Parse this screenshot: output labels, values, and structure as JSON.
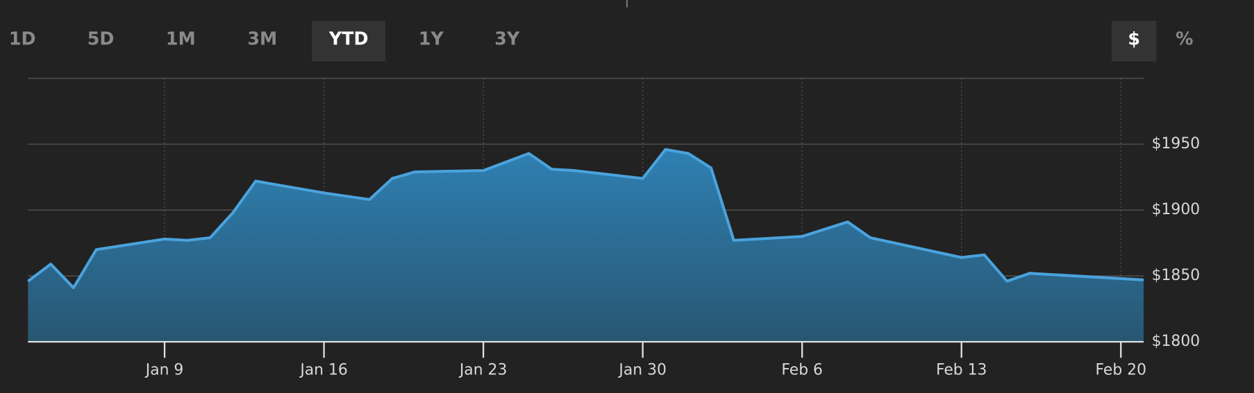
{
  "controls": {
    "ranges": [
      "1D",
      "5D",
      "1M",
      "3M",
      "YTD",
      "1Y",
      "3Y"
    ],
    "selected_range": 4,
    "units": [
      "$",
      "%"
    ],
    "selected_unit": 0
  },
  "chart_data": {
    "type": "area",
    "x": [
      "Jan 3",
      "Jan 4",
      "Jan 5",
      "Jan 6",
      "Jan 9",
      "Jan 10",
      "Jan 11",
      "Jan 12",
      "Jan 13",
      "Jan 16",
      "Jan 18",
      "Jan 19",
      "Jan 20",
      "Jan 23",
      "Jan 25",
      "Jan 26",
      "Jan 27",
      "Jan 30",
      "Jan 31",
      "Feb 1",
      "Feb 2",
      "Feb 3",
      "Feb 6",
      "Feb 8",
      "Feb 9",
      "Feb 13",
      "Feb 14",
      "Feb 15",
      "Feb 16",
      "Feb 17",
      "Feb 21"
    ],
    "series": [
      {
        "color": "#4aa3dd",
        "values": [
          1846,
          1859,
          1841,
          1870,
          1878,
          1877,
          1879,
          1898,
          1922,
          1913,
          1908,
          1924,
          1929,
          1930,
          1943,
          1931,
          1930,
          1924,
          1946,
          1943,
          1932,
          1877,
          1880,
          1891,
          1879,
          1864,
          1866,
          1846,
          1852,
          1851,
          1847
        ]
      }
    ],
    "xlim": [
      "Jan 3",
      "Feb 21"
    ],
    "xticks": [
      "Jan 9",
      "Jan 16",
      "Jan 23",
      "Jan 30",
      "Feb 6",
      "Feb 13",
      "Feb 20"
    ],
    "ylim": [
      1800,
      2000
    ],
    "yticks": [
      {
        "value": 1800,
        "label": "$1800"
      },
      {
        "value": 1850,
        "label": "$1850"
      },
      {
        "value": 1900,
        "label": "$1900"
      },
      {
        "value": 1950,
        "label": "$1950"
      }
    ],
    "grid": true
  }
}
